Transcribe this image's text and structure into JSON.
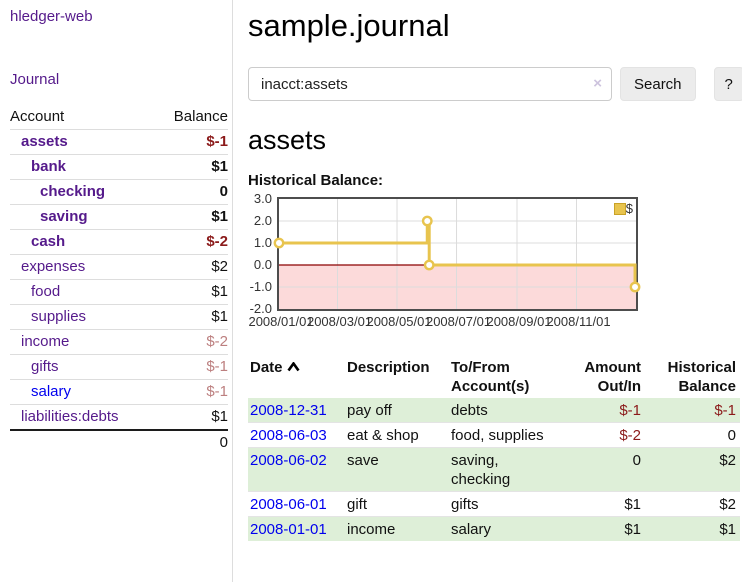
{
  "app": {
    "title": "hledger-web",
    "nav_journal": "Journal"
  },
  "sidebar": {
    "headers": [
      "Account",
      "Balance"
    ],
    "accounts": [
      {
        "name": "assets",
        "balance": "$-1"
      },
      {
        "name": "bank",
        "balance": "$1"
      },
      {
        "name": "checking",
        "balance": "0"
      },
      {
        "name": "saving",
        "balance": "$1"
      },
      {
        "name": "cash",
        "balance": "$-2"
      },
      {
        "name": "expenses",
        "balance": "$2"
      },
      {
        "name": "food",
        "balance": "$1"
      },
      {
        "name": "supplies",
        "balance": "$1"
      },
      {
        "name": "income",
        "balance": "$-2"
      },
      {
        "name": "gifts",
        "balance": "$-1"
      },
      {
        "name": "salary",
        "balance": "$-1"
      },
      {
        "name": "liabilities:debts",
        "balance": "$1"
      }
    ],
    "total": "0"
  },
  "main": {
    "title": "sample.journal",
    "search": {
      "value": "inacct:assets",
      "clear": "×",
      "button": "Search",
      "help": "?"
    },
    "account_heading": "assets",
    "chart_label": "Historical Balance:"
  },
  "chart_data": {
    "type": "line",
    "style": "step",
    "title": "Historical Balance",
    "ylim": [
      -2,
      3
    ],
    "yticks": [
      "3.0",
      "2.0",
      "1.0",
      "0.0",
      "-1.0",
      "-2.0"
    ],
    "xticks": [
      "2008/01/01",
      "2008/03/01",
      "2008/05/01",
      "2008/07/01",
      "2008/09/01",
      "2008/11/01"
    ],
    "x_range": [
      "2008-01-01",
      "2009-01-01"
    ],
    "series": [
      {
        "name": "$",
        "color": "#e8c44e",
        "points": [
          {
            "x": "2008-01-01",
            "y": 1
          },
          {
            "x": "2008-06-01",
            "y": 2
          },
          {
            "x": "2008-06-03",
            "y": 0
          },
          {
            "x": "2008-12-31",
            "y": -1
          }
        ]
      }
    ],
    "legend_position": "top-right",
    "grid": true,
    "negative_region_fill": "#fcdada",
    "zero_line_color": "#8b0000"
  },
  "register": {
    "headers": [
      "Date",
      "Description",
      "To/From Account(s)",
      "Amount Out/In",
      "Historical Balance"
    ],
    "rows": [
      {
        "date": "2008-12-31",
        "description": "pay off",
        "accounts": "debts",
        "amount": "$-1",
        "balance": "$-1"
      },
      {
        "date": "2008-06-03",
        "description": "eat & shop",
        "accounts": "food, supplies",
        "amount": "$-2",
        "balance": "0"
      },
      {
        "date": "2008-06-02",
        "description": "save",
        "accounts": "saving, checking",
        "amount": "0",
        "balance": "$2"
      },
      {
        "date": "2008-06-01",
        "description": "gift",
        "accounts": "gifts",
        "amount": "$1",
        "balance": "$2"
      },
      {
        "date": "2008-01-01",
        "description": "income",
        "accounts": "salary",
        "amount": "$1",
        "balance": "$1"
      }
    ]
  },
  "colors": {
    "link_purple": "#551a8b",
    "link_blue": "#0000ee",
    "negative_red": "#8b1a1a",
    "faded_red": "#bc7f7f",
    "row_green": "#deefd8",
    "chart_line_gold": "#e8c44e",
    "chart_negative_pink": "#fcdada",
    "zero_line_red": "#8b0000",
    "button_gray": "#ececec"
  }
}
